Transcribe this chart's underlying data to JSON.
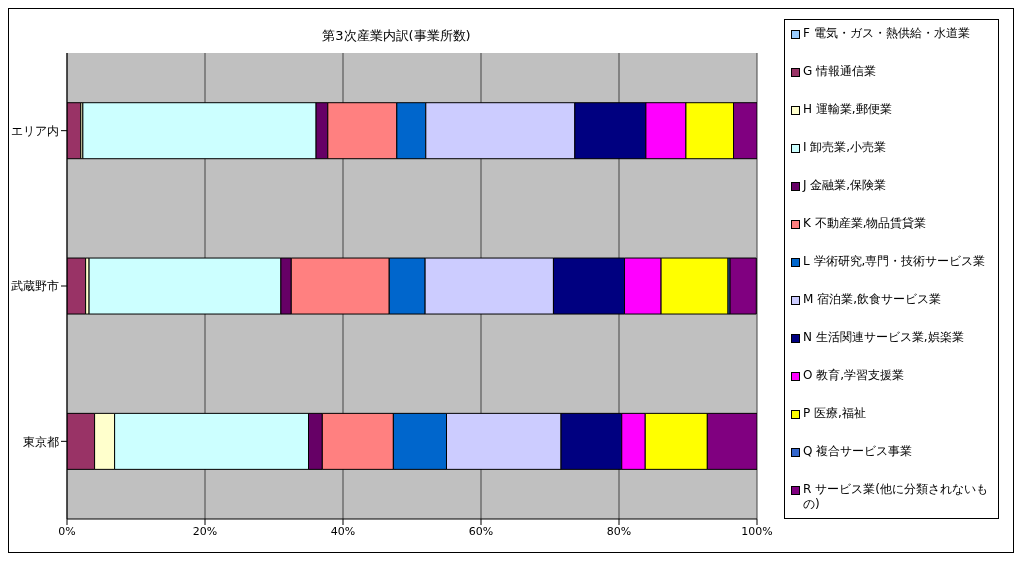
{
  "chart_data": {
    "type": "bar",
    "title": "第3次産業内訳(事業所数)",
    "orientation": "horizontal",
    "stacked": true,
    "categories": [
      "エリア内",
      "武蔵野市",
      "東京都"
    ],
    "series": [
      {
        "name": "F 電気・ガス・熱供給・水道業",
        "color": "#99ccff",
        "values": [
          0,
          0,
          0
        ]
      },
      {
        "name": "G 情報通信業",
        "color": "#993366",
        "values": [
          2.0,
          2.7,
          4.0
        ]
      },
      {
        "name": "H 運輸業,郵便業",
        "color": "#ffffcc",
        "values": [
          0.3,
          0.5,
          2.9
        ]
      },
      {
        "name": "I 卸売業,小売業",
        "color": "#ccffff",
        "values": [
          33.8,
          27.8,
          28.1
        ]
      },
      {
        "name": "J 金融業,保険業",
        "color": "#660066",
        "values": [
          1.7,
          1.5,
          2.0
        ]
      },
      {
        "name": "K 不動産業,物品賃貸業",
        "color": "#ff8080",
        "values": [
          10.0,
          14.2,
          10.3
        ]
      },
      {
        "name": "L 学術研究,専門・技術サービス業",
        "color": "#0066cc",
        "values": [
          4.2,
          5.2,
          7.7
        ]
      },
      {
        "name": "M 宿泊業,飲食サービス業",
        "color": "#ccccff",
        "values": [
          21.6,
          18.6,
          16.6
        ]
      },
      {
        "name": "N 生活関連サービス業,娯楽業",
        "color": "#000080",
        "values": [
          10.3,
          10.3,
          8.8
        ]
      },
      {
        "name": "O 教育,学習支援業",
        "color": "#ff00ff",
        "values": [
          5.8,
          5.3,
          3.4
        ]
      },
      {
        "name": "P 医療,福祉",
        "color": "#ffff00",
        "values": [
          6.9,
          9.7,
          9.0
        ]
      },
      {
        "name": "Q 複合サービス事業",
        "color": "#3366cc",
        "values": [
          0,
          0.3,
          0
        ]
      },
      {
        "name": "R サービス業(他に分類されないもの)",
        "color": "#800080",
        "values": [
          3.4,
          3.8,
          7.2
        ]
      }
    ],
    "xlim": [
      0,
      100
    ],
    "xticks": [
      {
        "value": 0,
        "label": "0%"
      },
      {
        "value": 20,
        "label": "20%"
      },
      {
        "value": 40,
        "label": "40%"
      },
      {
        "value": 60,
        "label": "60%"
      },
      {
        "value": 80,
        "label": "80%"
      },
      {
        "value": 100,
        "label": "100%"
      }
    ],
    "grid": "x",
    "legend": "right"
  }
}
